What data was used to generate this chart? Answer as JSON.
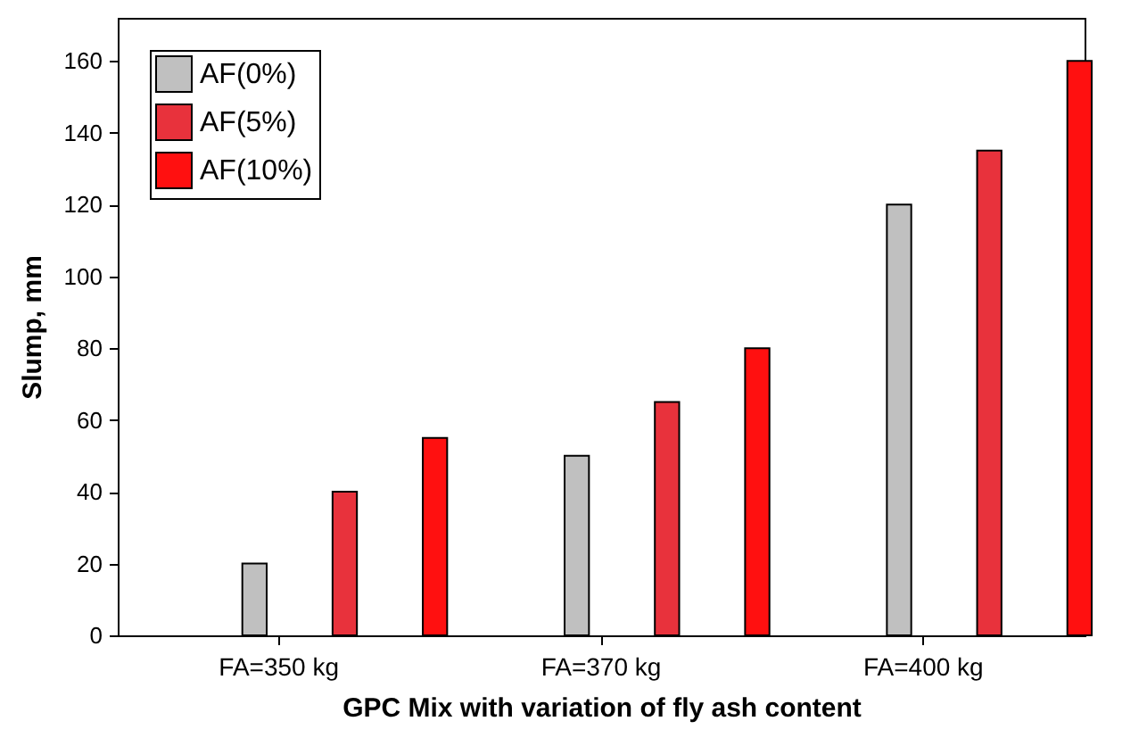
{
  "chart_data": {
    "type": "bar",
    "xlabel": "GPC Mix with variation of fly ash content",
    "ylabel": "Slump, mm",
    "categories": [
      "FA=350 kg",
      "FA=370 kg",
      "FA=400 kg"
    ],
    "series": [
      {
        "name": "AF(0%)",
        "color": "#c0c0c0",
        "values": [
          20,
          50,
          120
        ]
      },
      {
        "name": "AF(5%)",
        "color": "#e8323c",
        "values": [
          40,
          65,
          135
        ]
      },
      {
        "name": "AF(10%)",
        "color": "#ff1010",
        "values": [
          55,
          80,
          160
        ]
      }
    ],
    "ylim": [
      0,
      172
    ],
    "yticks": [
      0,
      20,
      40,
      60,
      80,
      100,
      120,
      140,
      160
    ],
    "grid": false,
    "legend": "top left"
  }
}
